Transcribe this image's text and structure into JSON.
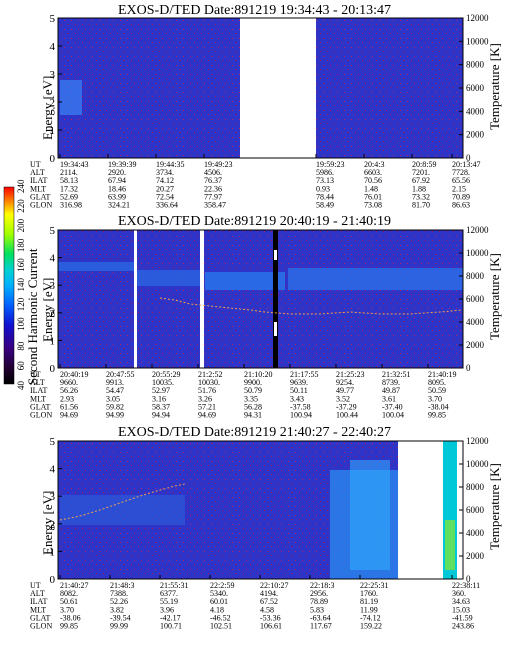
{
  "chart_data": [
    {
      "type": "heatmap",
      "title": "EXOS-D/TED   Date:891219  19:34:43 - 20:13:47",
      "ylabel": "Energy [eV]",
      "y2label": "Temperature [K]",
      "ylim": [
        0,
        5
      ],
      "y2lim": [
        0,
        12000
      ],
      "yticks": [
        "0",
        "1",
        "2",
        "3",
        "4",
        "5"
      ],
      "y2ticks": [
        "0",
        "2000",
        "4000",
        "6000",
        "8000",
        "10000",
        "12000"
      ],
      "ephemeris_labels": [
        "UT",
        "ALT",
        "ILAT",
        "MLT",
        "GLAT",
        "GLON"
      ],
      "ephemeris": [
        [
          "19:34:43",
          "2114.",
          "58.13",
          "17.32",
          "52.69",
          "316.98"
        ],
        [
          "19:39:39",
          "2920.",
          "67.94",
          "18.46",
          "63.99",
          "324.21"
        ],
        [
          "19:44:35",
          "3734.",
          "74.12",
          "20.27",
          "72.54",
          "336.64"
        ],
        [
          "19:49:23",
          "4506.",
          "76.37",
          "22.36",
          "77.97",
          "358.47"
        ],
        [
          "19:59:23",
          "5986.",
          "73.13",
          "0.93",
          "78.44",
          "58.49"
        ],
        [
          "20:4:3",
          "6603.",
          "70.56",
          "1.48",
          "76.01",
          "73.08"
        ],
        [
          "20:8:59",
          "7201.",
          "67.92",
          "1.88",
          "73.32",
          "81.70"
        ],
        [
          "20:13:47",
          "7728.",
          "65.56",
          "2.15",
          "70.89",
          "86.63"
        ]
      ]
    },
    {
      "type": "heatmap",
      "title": "EXOS-D/TED   Date:891219  20:40:19 - 21:40:19",
      "ylabel": "Energy [eV]",
      "y2label": "Temperature [K]",
      "ylim": [
        0,
        5
      ],
      "y2lim": [
        0,
        12000
      ],
      "yticks": [
        "0",
        "1",
        "2",
        "3",
        "4",
        "5"
      ],
      "y2ticks": [
        "0",
        "2000",
        "4000",
        "6000",
        "8000",
        "10000",
        "12000"
      ],
      "ephemeris_labels": [
        "UT",
        "ALT",
        "ILAT",
        "MLT",
        "GLAT",
        "GLON"
      ],
      "ephemeris": [
        [
          "20:40:19",
          "9660.",
          "56.26",
          "2.93",
          "61.56",
          "94.69"
        ],
        [
          "20:47:55",
          "9913.",
          "54.47",
          "3.05",
          "59.82",
          "94.99"
        ],
        [
          "20:55:29",
          "10035.",
          "52.97",
          "3.16",
          "58.37",
          "94.94"
        ],
        [
          "21:2:52",
          "10030.",
          "51.76",
          "3.26",
          "57.21",
          "94.69"
        ],
        [
          "21:10:20",
          "9900.",
          "50.79",
          "3.35",
          "56.28",
          "94.31"
        ],
        [
          "21:17:55",
          "9639.",
          "50.11",
          "3.43",
          "-37.58",
          "100.94"
        ],
        [
          "21:25:23",
          "9254.",
          "49.77",
          "3.52",
          "-37.29",
          "100.44"
        ],
        [
          "21:32:51",
          "8739.",
          "49.87",
          "3.61",
          "-37.40",
          "100.04"
        ],
        [
          "21:40:19",
          "8095.",
          "50.59",
          "3.70",
          "-38.04",
          "99.85"
        ]
      ]
    },
    {
      "type": "heatmap",
      "title": "EXOS-D/TED   Date:891219  21:40:27 - 22:40:27",
      "ylabel": "Energy [eV]",
      "y2label": "Temperature [K]",
      "ylim": [
        0,
        5
      ],
      "y2lim": [
        0,
        12000
      ],
      "yticks": [
        "0",
        "1",
        "2",
        "3",
        "4",
        "5"
      ],
      "y2ticks": [
        "0",
        "2000",
        "4000",
        "6000",
        "8000",
        "10000",
        "12000"
      ],
      "ephemeris_labels": [
        "UT",
        "ALT",
        "ILAT",
        "MLT",
        "GLAT",
        "GLON"
      ],
      "ephemeris": [
        [
          "21:40:27",
          "8082.",
          "50.61",
          "3.70",
          "-38.06",
          "99.85"
        ],
        [
          "21:48:3",
          "7388.",
          "52.26",
          "3.82",
          "-39.54",
          "99.99"
        ],
        [
          "21:55:31",
          "6377.",
          "55.19",
          "3.96",
          "-42.17",
          "100.71"
        ],
        [
          "22:2:59",
          "5340.",
          "60.01",
          "4.18",
          "-46.52",
          "102.51"
        ],
        [
          "22:10:27",
          "4194.",
          "67.52",
          "4.58",
          "-53.36",
          "106.61"
        ],
        [
          "22:18:3",
          "2956.",
          "78.89",
          "5.83",
          "-63.64",
          "117.67"
        ],
        [
          "22:25:31",
          "1760.",
          "81.19",
          "11.99",
          "-74.12",
          "159.22"
        ],
        [
          "22:38:11",
          "360.",
          "34.63",
          "15.03",
          "-41.59",
          "243.86"
        ]
      ]
    }
  ],
  "colorbar": {
    "label": "Second Harmonic Current",
    "ticks": [
      "40",
      "60",
      "80",
      "100",
      "120",
      "140",
      "160",
      "180",
      "200",
      "220",
      "240"
    ]
  }
}
